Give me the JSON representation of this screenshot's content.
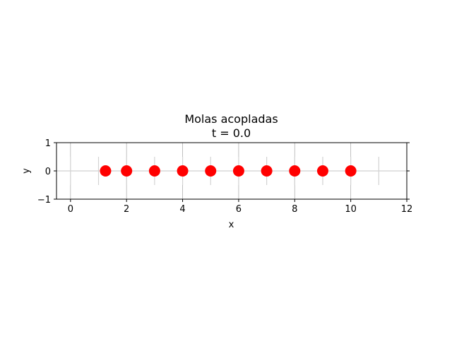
{
  "chart_data": {
    "type": "scatter",
    "title_line1": "Molas acopladas",
    "title_line2": "t =   0.0",
    "xlabel": "x",
    "ylabel": "y",
    "xlim": [
      -0.5,
      12
    ],
    "ylim": [
      -1,
      1
    ],
    "xticks": [
      0,
      2,
      4,
      6,
      8,
      10,
      12
    ],
    "yticks": [
      -1,
      0,
      1
    ],
    "grid": true,
    "series": [
      {
        "points": [
          {
            "x": 1.25,
            "y": 0
          },
          {
            "x": 2,
            "y": 0
          },
          {
            "x": 3,
            "y": 0
          },
          {
            "x": 4,
            "y": 0
          },
          {
            "x": 5,
            "y": 0
          },
          {
            "x": 6,
            "y": 0
          },
          {
            "x": 7,
            "y": 0
          },
          {
            "x": 8,
            "y": 0
          },
          {
            "x": 9,
            "y": 0
          },
          {
            "x": 10,
            "y": 0
          }
        ],
        "color": "#ff0000"
      }
    ],
    "guide_lines": {
      "x": [
        0,
        1,
        2,
        3,
        4,
        5,
        6,
        7,
        8,
        9,
        10,
        11
      ],
      "y_range": [
        -0.5,
        0.5
      ],
      "color": "#d3d3d3"
    }
  }
}
